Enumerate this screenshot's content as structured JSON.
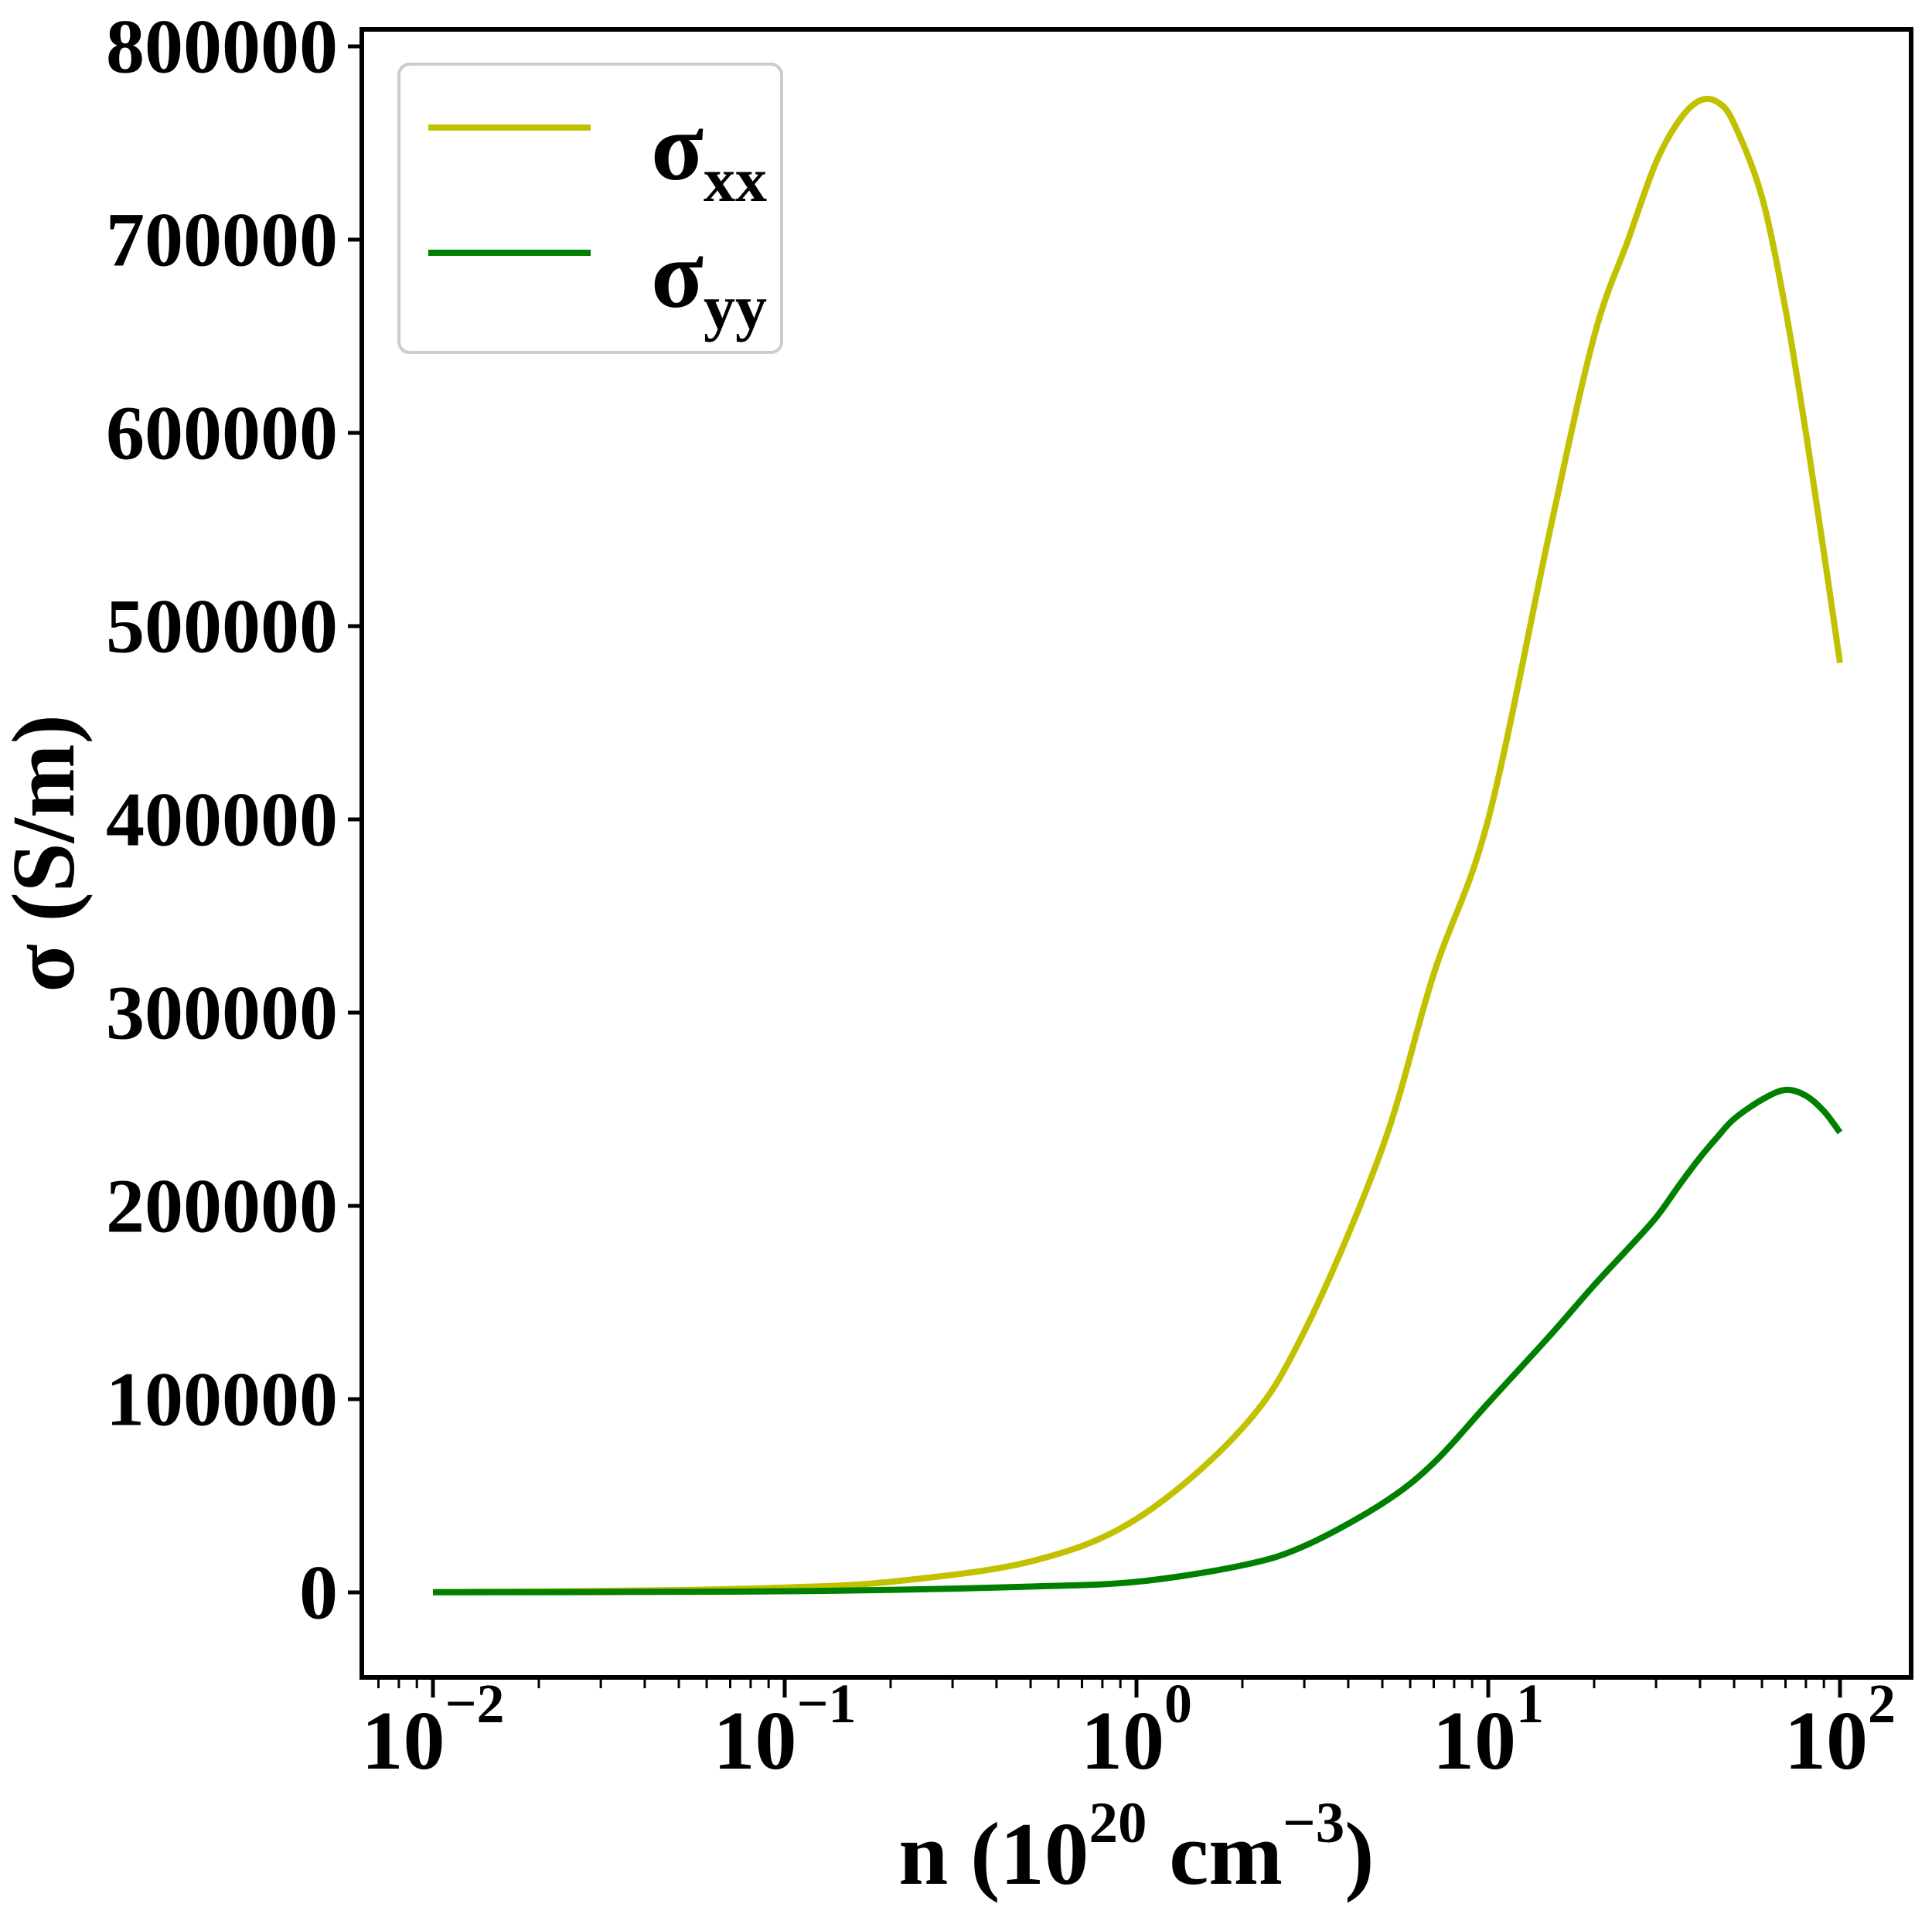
{
  "figure": {
    "background": "#ffffff",
    "axis_color": "#000000"
  },
  "chart_data": {
    "type": "line",
    "title": "",
    "x_scale": "log",
    "x_range": [
      0.01,
      100
    ],
    "xlim_log": [
      -2.2,
      2.2
    ],
    "ylim": [
      -44000,
      808800
    ],
    "grid": false,
    "ylabel": "σ (S/m)",
    "xlabel": {
      "text": "n (10^20 cm^-3)",
      "p1": "n (10",
      "sup1": "20",
      "p2": " cm",
      "sup2": "−3",
      "p3": ")"
    },
    "x_tick_base": "10",
    "x_ticks": [
      {
        "value": 0.01,
        "exp": -2,
        "exp_label": "−2"
      },
      {
        "value": 0.1,
        "exp": -1,
        "exp_label": "−1"
      },
      {
        "value": 1,
        "exp": 0,
        "exp_label": "0"
      },
      {
        "value": 10,
        "exp": 1,
        "exp_label": "1"
      },
      {
        "value": 100,
        "exp": 2,
        "exp_label": "2"
      }
    ],
    "y_ticks": [
      {
        "value": 0,
        "label": "0"
      },
      {
        "value": 100000,
        "label": "100000"
      },
      {
        "value": 200000,
        "label": "200000"
      },
      {
        "value": 300000,
        "label": "300000"
      },
      {
        "value": 400000,
        "label": "400000"
      },
      {
        "value": 500000,
        "label": "500000"
      },
      {
        "value": 600000,
        "label": "600000"
      },
      {
        "value": 700000,
        "label": "700000"
      },
      {
        "value": 800000,
        "label": "800000"
      }
    ],
    "legend": {
      "position": "upper left",
      "entries": [
        {
          "symbol": "σ",
          "sub": "xx",
          "color": "#c1c100"
        },
        {
          "symbol": "σ",
          "sub": "yy",
          "color": "#008000"
        }
      ]
    },
    "series": [
      {
        "name": "sigma_xx",
        "label": "σ_xx",
        "color": "#c1c100",
        "x": [
          0.01,
          0.02,
          0.05,
          0.1,
          0.2,
          0.5,
          1,
          2,
          3,
          5,
          7,
          10,
          15,
          20,
          25,
          30,
          35,
          40,
          45,
          50,
          60,
          70,
          80,
          90,
          100
        ],
        "y": [
          200,
          500,
          1200,
          2500,
          5500,
          16000,
          38000,
          85000,
          135000,
          230000,
          320000,
          400000,
          550000,
          650000,
          700000,
          740000,
          762000,
          772000,
          771000,
          760000,
          722000,
          664000,
          600000,
          538000,
          481000
        ]
      },
      {
        "name": "sigma_yy",
        "label": "σ_yy",
        "color": "#008000",
        "x": [
          0.01,
          0.02,
          0.05,
          0.1,
          0.2,
          0.5,
          1,
          2,
          3,
          5,
          7,
          10,
          15,
          20,
          25,
          30,
          35,
          40,
          45,
          50,
          60,
          70,
          80,
          90,
          100
        ],
        "y": [
          50,
          120,
          280,
          600,
          1300,
          3000,
          5500,
          14000,
          24000,
          46000,
          67000,
          98000,
          133000,
          159000,
          178000,
          194000,
          211000,
          225000,
          236000,
          245000,
          255000,
          260000,
          257000,
          249000,
          238000
        ]
      }
    ]
  }
}
